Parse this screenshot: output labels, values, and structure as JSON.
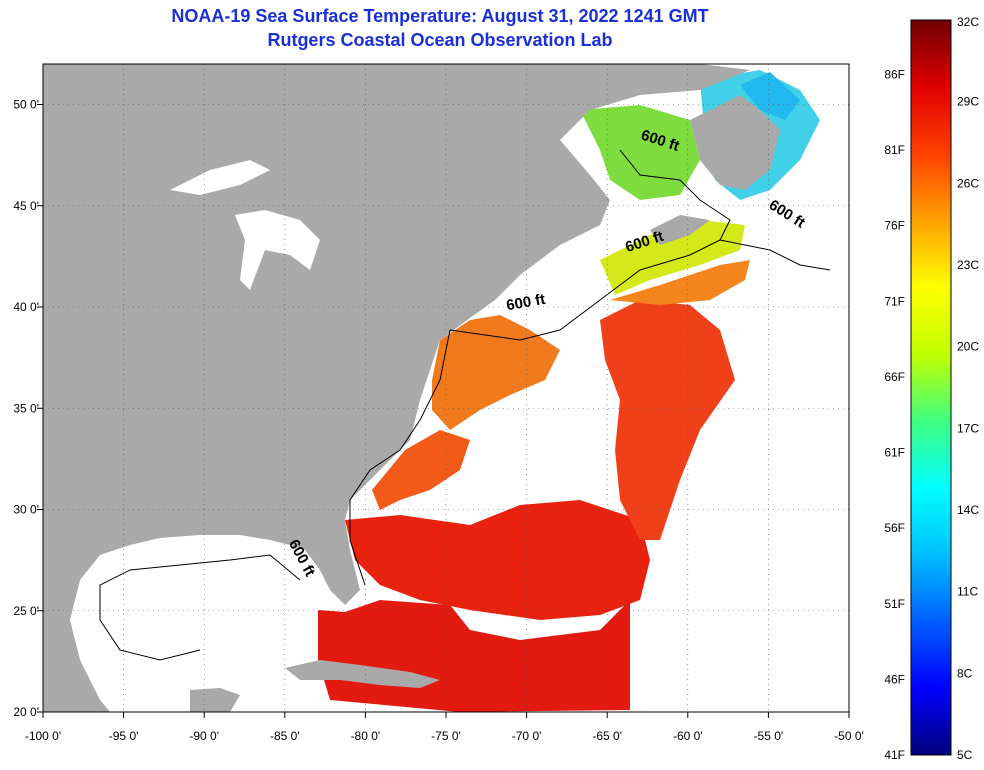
{
  "title": {
    "line1": "NOAA-19 Sea Surface Temperature:  August 31, 2022 1241 GMT",
    "line2": "Rutgers Coastal Ocean Observation Lab"
  },
  "map": {
    "lon_range": [
      -100,
      -50
    ],
    "lat_range": [
      20,
      52
    ],
    "lon_ticks": [
      {
        "v": -100,
        "label": "-100 0'"
      },
      {
        "v": -95,
        "label": "-95 0'"
      },
      {
        "v": -90,
        "label": "-90 0'"
      },
      {
        "v": -85,
        "label": "-85 0'"
      },
      {
        "v": -80,
        "label": "-80 0'"
      },
      {
        "v": -75,
        "label": "-75 0'"
      },
      {
        "v": -70,
        "label": "-70 0'"
      },
      {
        "v": -65,
        "label": "-65 0'"
      },
      {
        "v": -60,
        "label": "-60 0'"
      },
      {
        "v": -55,
        "label": "-55 0'"
      },
      {
        "v": -50,
        "label": "-50 0'"
      }
    ],
    "lat_ticks": [
      {
        "v": 20,
        "label": "20 0'"
      },
      {
        "v": 25,
        "label": "25 0'"
      },
      {
        "v": 30,
        "label": "30 0'"
      },
      {
        "v": 35,
        "label": "35 0'"
      },
      {
        "v": 40,
        "label": "40 0'"
      },
      {
        "v": 45,
        "label": "45 0'"
      },
      {
        "v": 50,
        "label": "50 0'"
      }
    ],
    "isobath_labels": [
      {
        "text": "600 ft",
        "lon": -61.8,
        "lat": 48.0,
        "angle": 18
      },
      {
        "text": "600 ft",
        "lon": -54.0,
        "lat": 44.4,
        "angle": 32
      },
      {
        "text": "600 ft",
        "lon": -62.6,
        "lat": 43.0,
        "angle": -18
      },
      {
        "text": "600 ft",
        "lon": -70.0,
        "lat": 40.0,
        "angle": -10
      },
      {
        "text": "600 ft",
        "lon": -84.2,
        "lat": 27.5,
        "angle": 62
      }
    ],
    "colors": {
      "land": "#a9a9a9",
      "cloud": "#ffffff",
      "grid": "#555555"
    }
  },
  "legend": {
    "celsius": [
      {
        "v": 32,
        "label": "32C"
      },
      {
        "v": 29,
        "label": "29C"
      },
      {
        "v": 26,
        "label": "26C"
      },
      {
        "v": 23,
        "label": "23C"
      },
      {
        "v": 20,
        "label": "20C"
      },
      {
        "v": 17,
        "label": "17C"
      },
      {
        "v": 14,
        "label": "14C"
      },
      {
        "v": 11,
        "label": "11C"
      },
      {
        "v": 8,
        "label": "8C"
      },
      {
        "v": 5,
        "label": "5C"
      }
    ],
    "fahrenheit": [
      {
        "v": 86,
        "label": "86F"
      },
      {
        "v": 81,
        "label": "81F"
      },
      {
        "v": 76,
        "label": "76F"
      },
      {
        "v": 71,
        "label": "71F"
      },
      {
        "v": 66,
        "label": "66F"
      },
      {
        "v": 61,
        "label": "61F"
      },
      {
        "v": 56,
        "label": "56F"
      },
      {
        "v": 51,
        "label": "51F"
      },
      {
        "v": 46,
        "label": "46F"
      },
      {
        "v": 41,
        "label": "41F"
      }
    ],
    "range_c": [
      5,
      32
    ],
    "gradient": [
      "#00007a",
      "#0000ff",
      "#0060ff",
      "#00c0ff",
      "#00ffff",
      "#40ff80",
      "#c0ff00",
      "#ffff00",
      "#ffa000",
      "#ff4000",
      "#e00000",
      "#700000"
    ]
  }
}
